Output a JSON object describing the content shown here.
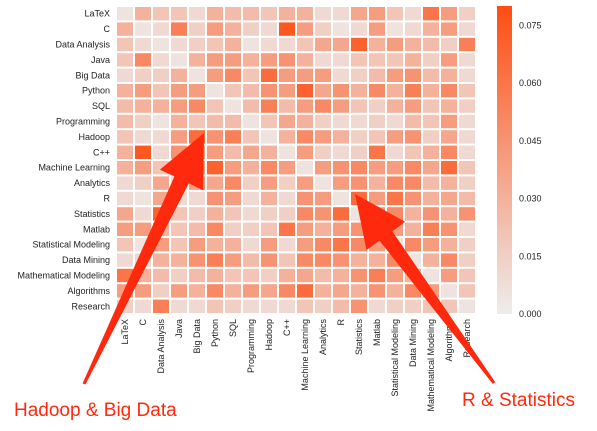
{
  "chart_data": {
    "type": "heatmap",
    "title": "",
    "xlabel": "",
    "ylabel": "",
    "categories": [
      "LaTeX",
      "C",
      "Data Analysis",
      "Java",
      "Big Data",
      "Python",
      "SQL",
      "Programming",
      "Hadoop",
      "C++",
      "Machine Learning",
      "Analytics",
      "R",
      "Statistics",
      "Matlab",
      "Statistical Modeling",
      "Data Mining",
      "Mathematical Modeling",
      "Algorithms",
      "Research"
    ],
    "values": [
      [
        0.005,
        0.03,
        0.02,
        0.02,
        0.01,
        0.03,
        0.025,
        0.025,
        0.02,
        0.03,
        0.03,
        0.01,
        0.01,
        0.035,
        0.04,
        0.02,
        0.01,
        0.06,
        0.04,
        0.015
      ],
      [
        0.03,
        0.005,
        0.01,
        0.055,
        0.015,
        0.04,
        0.03,
        0.015,
        0.01,
        0.075,
        0.04,
        0.015,
        0.005,
        0.01,
        0.04,
        0.005,
        0.01,
        0.03,
        0.04,
        0.01
      ],
      [
        0.02,
        0.01,
        0.005,
        0.01,
        0.015,
        0.02,
        0.03,
        0.005,
        0.01,
        0.01,
        0.02,
        0.035,
        0.035,
        0.07,
        0.03,
        0.04,
        0.03,
        0.025,
        0.015,
        0.055
      ],
      [
        0.02,
        0.05,
        0.01,
        0.005,
        0.03,
        0.04,
        0.04,
        0.03,
        0.04,
        0.045,
        0.03,
        0.01,
        0.01,
        0.02,
        0.02,
        0.02,
        0.03,
        0.015,
        0.04,
        0.01
      ],
      [
        0.01,
        0.015,
        0.015,
        0.03,
        0.005,
        0.04,
        0.05,
        0.02,
        0.065,
        0.04,
        0.04,
        0.04,
        0.01,
        0.015,
        0.025,
        0.04,
        0.045,
        0.025,
        0.03,
        0.01
      ],
      [
        0.03,
        0.04,
        0.02,
        0.04,
        0.04,
        0.005,
        0.02,
        0.025,
        0.045,
        0.04,
        0.07,
        0.035,
        0.045,
        0.03,
        0.05,
        0.03,
        0.055,
        0.03,
        0.05,
        0.02
      ],
      [
        0.025,
        0.03,
        0.03,
        0.04,
        0.05,
        0.02,
        0.005,
        0.025,
        0.055,
        0.025,
        0.04,
        0.05,
        0.04,
        0.02,
        0.015,
        0.03,
        0.04,
        0.02,
        0.03,
        0.015
      ],
      [
        0.025,
        0.015,
        0.005,
        0.03,
        0.02,
        0.025,
        0.025,
        0.005,
        0.02,
        0.035,
        0.03,
        0.015,
        0.01,
        0.01,
        0.015,
        0.01,
        0.025,
        0.02,
        0.04,
        0.01
      ],
      [
        0.02,
        0.01,
        0.01,
        0.04,
        0.065,
        0.045,
        0.055,
        0.02,
        0.005,
        0.03,
        0.05,
        0.04,
        0.03,
        0.015,
        0.02,
        0.04,
        0.045,
        0.015,
        0.035,
        0.01
      ],
      [
        0.03,
        0.075,
        0.01,
        0.045,
        0.04,
        0.04,
        0.025,
        0.035,
        0.03,
        0.005,
        0.04,
        0.015,
        0.01,
        0.015,
        0.06,
        0.01,
        0.02,
        0.03,
        0.05,
        0.01
      ],
      [
        0.03,
        0.04,
        0.02,
        0.03,
        0.04,
        0.07,
        0.04,
        0.03,
        0.05,
        0.04,
        0.005,
        0.04,
        0.045,
        0.05,
        0.04,
        0.04,
        0.05,
        0.035,
        0.065,
        0.02
      ],
      [
        0.01,
        0.015,
        0.035,
        0.01,
        0.04,
        0.035,
        0.05,
        0.015,
        0.04,
        0.015,
        0.04,
        0.005,
        0.04,
        0.045,
        0.03,
        0.05,
        0.05,
        0.025,
        0.03,
        0.015
      ],
      [
        0.01,
        0.005,
        0.035,
        0.01,
        0.01,
        0.045,
        0.04,
        0.01,
        0.03,
        0.01,
        0.045,
        0.04,
        0.005,
        0.065,
        0.04,
        0.06,
        0.045,
        0.03,
        0.035,
        0.025
      ],
      [
        0.035,
        0.01,
        0.07,
        0.02,
        0.015,
        0.03,
        0.02,
        0.01,
        0.015,
        0.015,
        0.05,
        0.045,
        0.065,
        0.005,
        0.045,
        0.05,
        0.03,
        0.045,
        0.03,
        0.045
      ],
      [
        0.04,
        0.04,
        0.03,
        0.02,
        0.025,
        0.05,
        0.015,
        0.015,
        0.02,
        0.06,
        0.04,
        0.03,
        0.04,
        0.045,
        0.005,
        0.04,
        0.03,
        0.055,
        0.045,
        0.01
      ],
      [
        0.02,
        0.005,
        0.04,
        0.02,
        0.04,
        0.03,
        0.03,
        0.01,
        0.04,
        0.01,
        0.04,
        0.05,
        0.06,
        0.05,
        0.04,
        0.005,
        0.05,
        0.04,
        0.03,
        0.015
      ],
      [
        0.01,
        0.01,
        0.03,
        0.03,
        0.045,
        0.055,
        0.04,
        0.025,
        0.045,
        0.02,
        0.05,
        0.05,
        0.045,
        0.03,
        0.03,
        0.05,
        0.005,
        0.03,
        0.05,
        0.015
      ],
      [
        0.06,
        0.03,
        0.025,
        0.015,
        0.025,
        0.03,
        0.02,
        0.02,
        0.015,
        0.03,
        0.035,
        0.025,
        0.03,
        0.045,
        0.055,
        0.04,
        0.03,
        0.005,
        0.04,
        0.02
      ],
      [
        0.04,
        0.04,
        0.015,
        0.04,
        0.03,
        0.05,
        0.03,
        0.04,
        0.035,
        0.05,
        0.065,
        0.03,
        0.035,
        0.03,
        0.045,
        0.03,
        0.05,
        0.04,
        0.005,
        0.02
      ],
      [
        0.015,
        0.01,
        0.055,
        0.01,
        0.01,
        0.02,
        0.015,
        0.01,
        0.01,
        0.01,
        0.02,
        0.015,
        0.025,
        0.045,
        0.01,
        0.015,
        0.015,
        0.02,
        0.02,
        0.005
      ]
    ],
    "color_range": [
      0.0,
      0.08
    ],
    "colorbar_ticks": [
      "0.000",
      "0.015",
      "0.030",
      "0.045",
      "0.060",
      "0.075"
    ],
    "colorbar_tick_values": [
      0.0,
      0.015,
      0.03,
      0.045,
      0.06,
      0.075
    ],
    "colors": {
      "low": "#ededed",
      "high": "#ff4d12",
      "annotation": "#ff2a0d"
    },
    "grid": false,
    "legend": "colorbar-right"
  },
  "annotations": [
    {
      "text": "Hadoop & Big Data"
    },
    {
      "text": "R & Statistics"
    }
  ]
}
